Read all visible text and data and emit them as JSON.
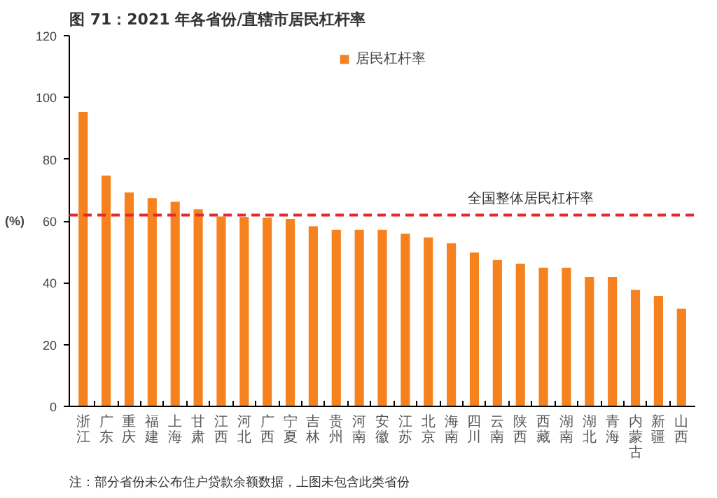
{
  "chart_data": {
    "type": "bar",
    "title": "图 71：2021 年各省份/直辖市居民杠杆率",
    "ylabel": "(%)",
    "categories": [
      "浙江",
      "广东",
      "重庆",
      "福建",
      "上海",
      "甘肃",
      "江西",
      "河北",
      "广西",
      "宁夏",
      "吉林",
      "贵州",
      "河南",
      "安徽",
      "江苏",
      "北京",
      "海南",
      "四川",
      "云南",
      "陕西",
      "西藏",
      "湖南",
      "湖北",
      "青海",
      "内蒙古",
      "新疆",
      "山西"
    ],
    "series": [
      {
        "name": "居民杠杆率",
        "color": "#f5821f",
        "values": [
          95.3,
          74.7,
          69.2,
          67.4,
          66.2,
          63.8,
          61.5,
          61.3,
          61.1,
          60.7,
          58.3,
          57.1,
          57.1,
          57.1,
          55.9,
          54.7,
          52.8,
          49.8,
          47.4,
          46.2,
          44.9,
          44.9,
          41.9,
          41.9,
          37.7,
          35.8,
          31.6
        ]
      }
    ],
    "ylim": [
      0,
      120
    ],
    "yticks": [
      0,
      20,
      40,
      60,
      80,
      100,
      120
    ],
    "grid": false,
    "legend": "top",
    "ref_lines": [
      {
        "axis": "y",
        "value": 61.9,
        "label": "全国整体居民杠杆率",
        "color": "#e8262c",
        "line_style": "dashed"
      }
    ],
    "annotations": [
      "注：部分省份未公布住户贷款余额数据，上图未包含此类省份"
    ]
  }
}
